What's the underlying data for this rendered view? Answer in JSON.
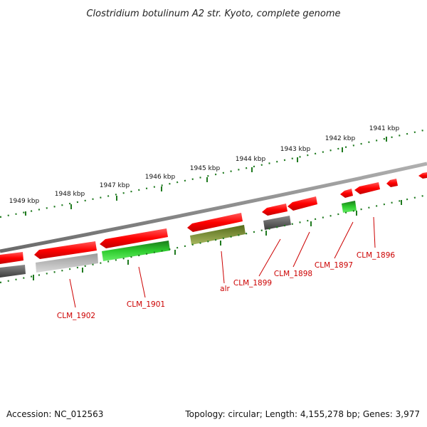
{
  "header": {
    "title": "Clostridium botulinum A2 str. Kyoto, complete genome"
  },
  "scale": {
    "ticks": [
      "1949 kbp",
      "1948 kbp",
      "1947 kbp",
      "1946 kbp",
      "1945 kbp",
      "1944 kbp",
      "1943 kbp",
      "1942 kbp",
      "1941 kbp"
    ]
  },
  "genes": {
    "labels": [
      "CLM_1902",
      "CLM_1901",
      "alr",
      "CLM_1899",
      "CLM_1898",
      "CLM_1897",
      "CLM_1896"
    ]
  },
  "footer": {
    "accession": "Accession: NC_012563",
    "summary": "Topology: circular; Length: 4,155,278 bp; Genes: 3,977"
  },
  "colors": {
    "forward_gene": "#ff0000",
    "reverse_gene_dark": "#555555",
    "reverse_gene_light": "#b8b8b8",
    "reverse_gene_green": "#22aa22",
    "reverse_gene_olive": "#6b8e23",
    "backbone": "#808080",
    "tick": "#1f7a1f",
    "label": "#cc0000"
  }
}
